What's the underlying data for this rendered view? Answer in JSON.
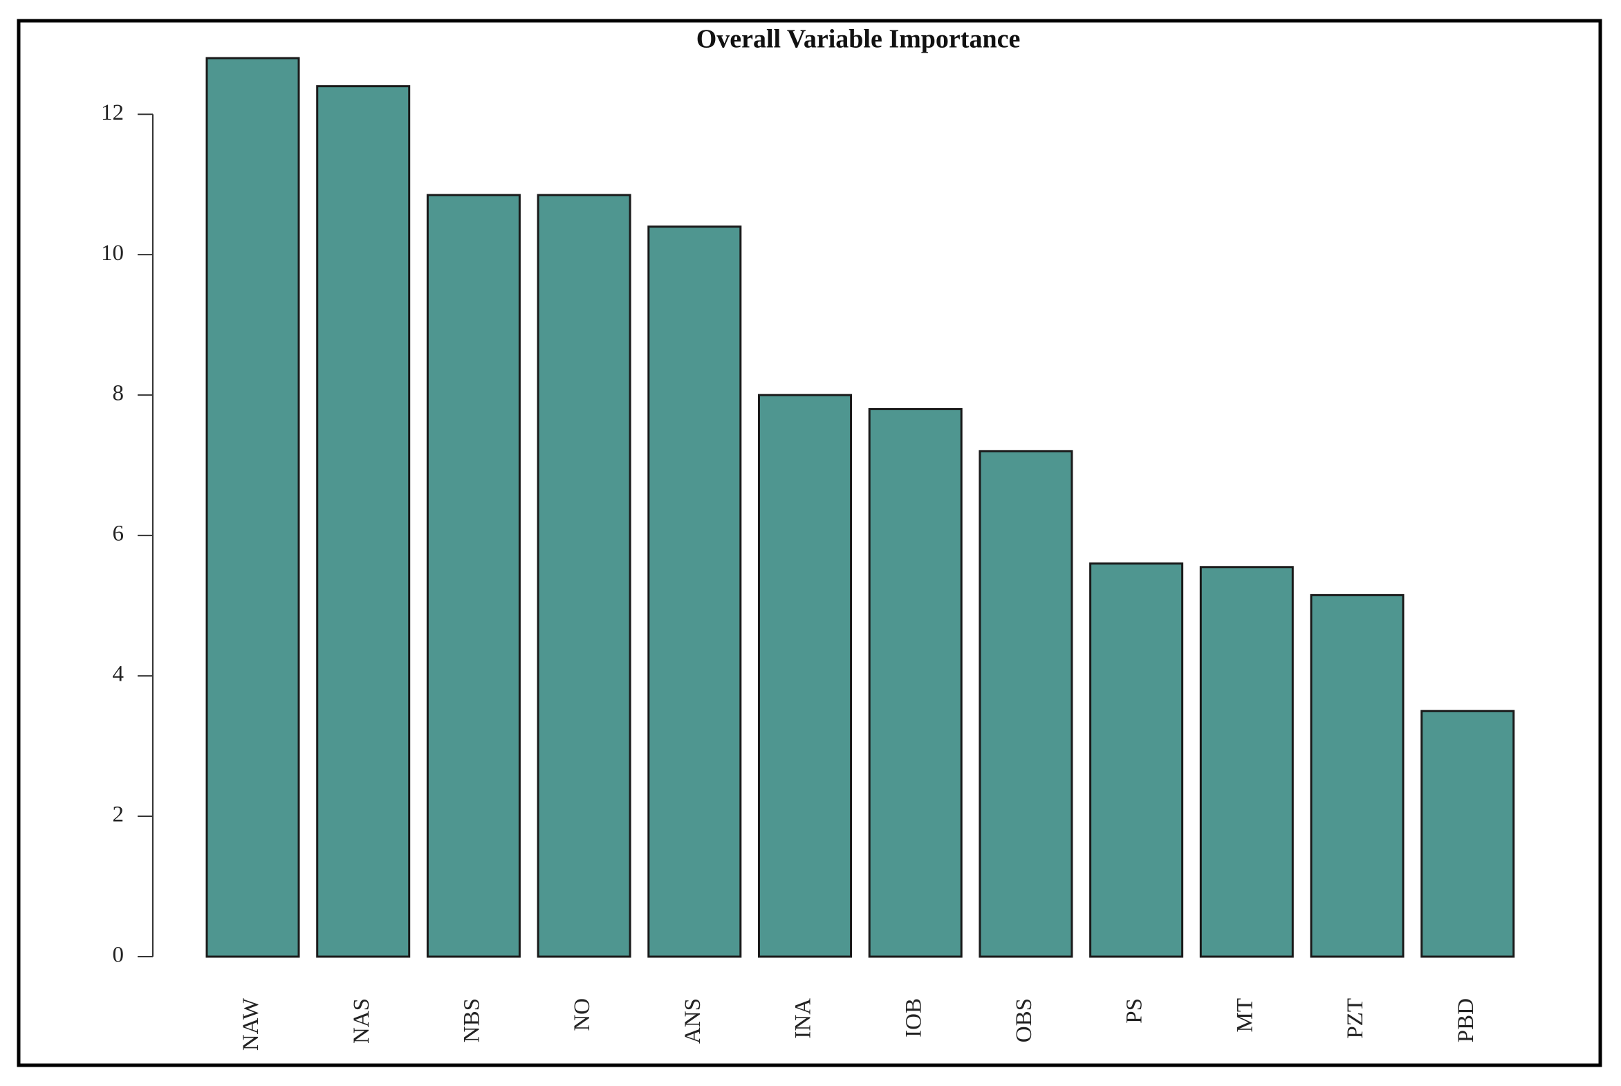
{
  "chart_data": {
    "type": "bar",
    "title": "Overall Variable Importance",
    "categories": [
      "NAW",
      "NAS",
      "NBS",
      "NO",
      "ANS",
      "INA",
      "IOB",
      "OBS",
      "PS",
      "MT",
      "PZT",
      "PBD"
    ],
    "values": [
      12.8,
      12.4,
      10.85,
      10.85,
      10.4,
      8.0,
      7.8,
      7.2,
      5.6,
      5.55,
      5.15,
      3.5
    ],
    "color": "#4f9690",
    "ylim": [
      0,
      13.5
    ],
    "yticks": [
      0,
      2,
      4,
      6,
      8,
      10,
      12
    ],
    "grid": false
  }
}
